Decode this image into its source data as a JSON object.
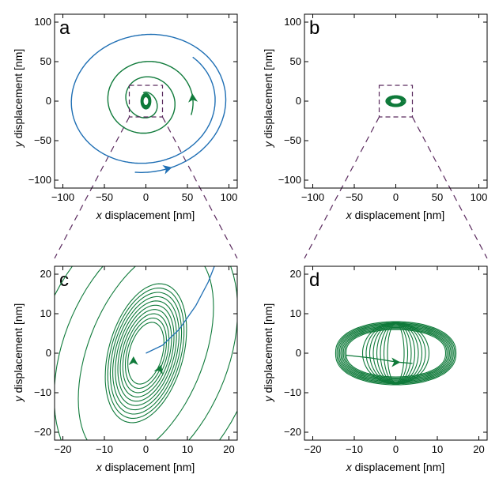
{
  "chart_data": [
    {
      "panel": "a",
      "type": "line",
      "xlabel_var": "x",
      "xlabel_rest": " displacement [nm]",
      "ylabel_var": "y",
      "ylabel_rest": " displacement [nm]",
      "xlim": [
        -110,
        110
      ],
      "ylim": [
        -110,
        110
      ],
      "xticks": [
        -100,
        -50,
        0,
        50,
        100
      ],
      "yticks": [
        -100,
        -50,
        0,
        50,
        100
      ],
      "zoom_box": [
        -20,
        20,
        -20,
        20
      ],
      "colors": {
        "blue": "#1f6fb4",
        "green": "#0f7a3a"
      },
      "series": [
        {
          "color": "blue",
          "shape": "spiral",
          "a0": 100,
          "a1": 82,
          "b0": 100,
          "b1": 82,
          "theta0": -0.6,
          "theta1": 2.2,
          "tilt": 0.2,
          "arrow_at": 0.04
        },
        {
          "color": "green",
          "shape": "spiral",
          "a0": 58,
          "a1": 6,
          "b0": 62,
          "b1": 12,
          "theta0": -0.2,
          "theta1": 4.5,
          "tilt": 0.3,
          "arrow_at": 0.02
        },
        {
          "color": "green",
          "shape": "dense",
          "cx": 0,
          "cy": 0,
          "rx": 6,
          "ry": 10,
          "loops": 10
        }
      ]
    },
    {
      "panel": "b",
      "type": "line",
      "xlabel_var": "x",
      "xlabel_rest": " displacement [nm]",
      "ylabel_var": "y",
      "ylabel_rest": " displacement [nm]",
      "xlim": [
        -110,
        110
      ],
      "ylim": [
        -110,
        110
      ],
      "xticks": [
        -100,
        -50,
        0,
        50,
        100
      ],
      "yticks": [
        -100,
        -50,
        0,
        50,
        100
      ],
      "zoom_box": [
        -20,
        20,
        -20,
        20
      ],
      "series": [
        {
          "color": "green",
          "shape": "dense",
          "cx": 0,
          "cy": 0,
          "rx": 12,
          "ry": 7,
          "loops": 8
        }
      ]
    },
    {
      "panel": "c",
      "type": "line",
      "xlabel_var": "x",
      "xlabel_rest": " displacement [nm]",
      "ylabel_var": "y",
      "ylabel_rest": " displacement [nm]",
      "xlim": [
        -22,
        22
      ],
      "ylim": [
        -22,
        22
      ],
      "xticks": [
        -20,
        -10,
        0,
        10,
        20
      ],
      "yticks": [
        -20,
        -10,
        0,
        10,
        20
      ],
      "series": [
        {
          "color": "green",
          "shape": "ellipse_family",
          "rx_min": 4,
          "rx_max": 9,
          "ry_min": 8,
          "ry_max": 18,
          "count": 10,
          "tilt": -0.25
        },
        {
          "color": "green",
          "shape": "ellipse_family",
          "rx_min": 14,
          "rx_max": 26,
          "ry_min": 28,
          "ry_max": 40,
          "count": 3,
          "tilt": -0.35
        },
        {
          "color": "blue",
          "shape": "arc",
          "points": [
            [
              0,
              0
            ],
            [
              4,
              2
            ],
            [
              8,
              6
            ],
            [
              12,
              12
            ],
            [
              15,
              18
            ],
            [
              16.5,
              22
            ]
          ]
        },
        {
          "color": "green",
          "shape": "arrows",
          "points": [
            [
              -3,
              -3,
              90
            ],
            [
              3,
              -5,
              70
            ]
          ]
        }
      ]
    },
    {
      "panel": "d",
      "type": "line",
      "xlabel_var": "x",
      "xlabel_rest": " displacement [nm]",
      "ylabel_var": "y",
      "ylabel_rest": " displacement [nm]",
      "xlim": [
        -22,
        22
      ],
      "ylim": [
        -22,
        22
      ],
      "xticks": [
        -20,
        -10,
        0,
        10,
        20
      ],
      "yticks": [
        -20,
        -10,
        0,
        10,
        20
      ],
      "series": [
        {
          "color": "green",
          "shape": "lens_family",
          "count": 9,
          "rx_min": 12,
          "rx_max": 14.5,
          "ry_min": 6,
          "ry_max": 8
        },
        {
          "color": "green",
          "shape": "ellipse_family",
          "rx_min": 2,
          "rx_max": 8,
          "ry_min": 7.5,
          "ry_max": 7.8,
          "count": 8,
          "tilt": 0
        },
        {
          "color": "green",
          "shape": "polyline",
          "points": [
            [
              -12,
              -0.5
            ],
            [
              -6,
              -1.2
            ],
            [
              0,
              -2.2
            ],
            [
              4,
              -2.6
            ]
          ]
        },
        {
          "color": "green",
          "shape": "arrows",
          "points": [
            [
              -1,
              -2.3,
              0
            ]
          ]
        }
      ]
    }
  ]
}
